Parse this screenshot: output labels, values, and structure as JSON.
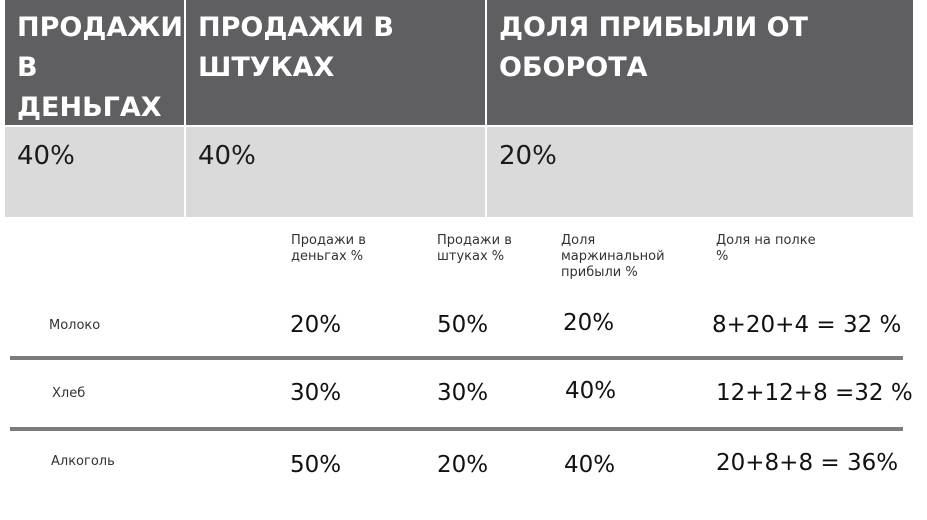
{
  "top": {
    "headers": [
      "ПРОДАЖИ В ДЕНЬГАХ",
      "ПРОДАЖИ В ШТУКАХ",
      "ДОЛЯ ПРИБЫЛИ ОТ ОБОРОТА"
    ],
    "values": [
      "40%",
      "40%",
      "20%"
    ]
  },
  "detail": {
    "columns": [
      "Продажи в деньгах %",
      "Продажи в штуках %",
      "Доля маржинальной прибыли %",
      "Доля на полке %"
    ],
    "rows": [
      {
        "label": "Молоко",
        "money": "20%",
        "units": "50%",
        "margin": "20%",
        "shelf": "8+20+4 = 32 %"
      },
      {
        "label": "Хлеб",
        "money": "30%",
        "units": "30%",
        "margin": "40%",
        "shelf": "12+12+8 =32 %"
      },
      {
        "label": "Алкоголь",
        "money": "50%",
        "units": "20%",
        "margin": "40%",
        "shelf": "20+8+8 = 36%"
      }
    ]
  }
}
